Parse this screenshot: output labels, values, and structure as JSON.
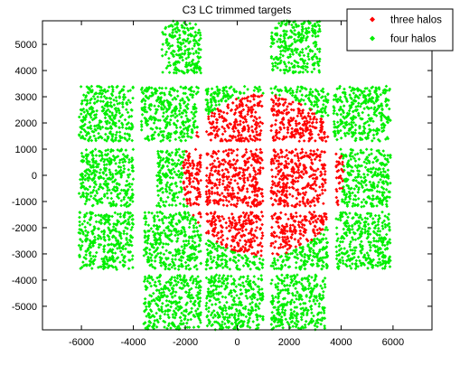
{
  "chart_data": {
    "type": "scatter",
    "title": "C3 LC trimmed targets",
    "xlabel": "",
    "ylabel": "",
    "xlim": [
      -7500,
      7500
    ],
    "ylim": [
      -5900,
      5900
    ],
    "xticks": [
      -6000,
      -4000,
      -2000,
      0,
      2000,
      4000,
      6000
    ],
    "yticks": [
      5000,
      4000,
      3000,
      2000,
      1000,
      0,
      -1000,
      -2000,
      -3000,
      -4000,
      -5000
    ],
    "xtick_labels": [
      "-6000",
      "-4000",
      "-2000",
      "0",
      "2000",
      "4000",
      "6000"
    ],
    "ytick_labels": [
      "5000",
      "4000",
      "3000",
      "2000",
      "1000",
      "0",
      "-1000",
      "-2000",
      "-3000",
      "-4000",
      "-5000"
    ],
    "grid": false,
    "legend_position": "top-right",
    "series": [
      {
        "name": "three halos",
        "color": "#ff0000",
        "marker": "diamond",
        "region": "points with radius less than 3100 inside the central CCD modules",
        "circle_center": [
          1000,
          0
        ],
        "circle_radius": 3100
      },
      {
        "name": "four halos",
        "color": "#00ee00",
        "marker": "diamond",
        "region": "remaining points on the CCD module grid"
      }
    ],
    "modules": [
      {
        "x": [
          -2900,
          -1400
        ],
        "y": [
          3900,
          5900
        ]
      },
      {
        "x": [
          1300,
          3200
        ],
        "y": [
          3900,
          5900
        ]
      },
      {
        "x": [
          -6100,
          -4000
        ],
        "y": [
          1300,
          3400
        ]
      },
      {
        "x": [
          -3700,
          -1500
        ],
        "y": [
          1300,
          3400
        ]
      },
      {
        "x": [
          -1200,
          1000
        ],
        "y": [
          1300,
          3400
        ]
      },
      {
        "x": [
          1300,
          3500
        ],
        "y": [
          1300,
          3400
        ]
      },
      {
        "x": [
          3700,
          5900
        ],
        "y": [
          1300,
          3400
        ]
      },
      {
        "x": [
          -6100,
          -4000
        ],
        "y": [
          -1200,
          1000
        ]
      },
      {
        "x": [
          -3100,
          -1400
        ],
        "y": [
          -1200,
          1000
        ]
      },
      {
        "x": [
          -1200,
          1000
        ],
        "y": [
          -1200,
          1000
        ]
      },
      {
        "x": [
          1300,
          3400
        ],
        "y": [
          -1200,
          1000
        ]
      },
      {
        "x": [
          3800,
          5900
        ],
        "y": [
          -1200,
          1000
        ]
      },
      {
        "x": [
          -6100,
          -4000
        ],
        "y": [
          -3600,
          -1400
        ]
      },
      {
        "x": [
          -3600,
          -1400
        ],
        "y": [
          -3600,
          -1400
        ]
      },
      {
        "x": [
          -1200,
          1000
        ],
        "y": [
          -3600,
          -1400
        ]
      },
      {
        "x": [
          1300,
          3500
        ],
        "y": [
          -3600,
          -1400
        ]
      },
      {
        "x": [
          3800,
          5900
        ],
        "y": [
          -3600,
          -1400
        ]
      },
      {
        "x": [
          -3600,
          -1400
        ],
        "y": [
          -5900,
          -3800
        ]
      },
      {
        "x": [
          -1200,
          1000
        ],
        "y": [
          -5900,
          -3800
        ]
      },
      {
        "x": [
          1300,
          3400
        ],
        "y": [
          -5900,
          -3800
        ]
      }
    ]
  }
}
